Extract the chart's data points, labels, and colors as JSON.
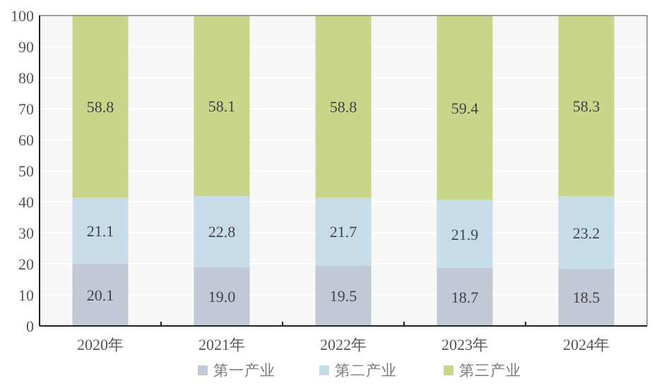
{
  "chart_data": {
    "type": "bar",
    "stacked": true,
    "categories": [
      "2020年",
      "2021年",
      "2022年",
      "2023年",
      "2024年"
    ],
    "series": [
      {
        "name": "第一产业",
        "color": "#c2c9d6",
        "values": [
          20.1,
          19.0,
          19.5,
          18.7,
          18.5
        ],
        "value_labels": [
          "20.1",
          "19.0",
          "19.5",
          "18.7",
          "18.5"
        ]
      },
      {
        "name": "第二产业",
        "color": "#c6dce8",
        "values": [
          21.1,
          22.8,
          21.7,
          21.9,
          23.2
        ],
        "value_labels": [
          "21.1",
          "22.8",
          "21.7",
          "21.9",
          "23.2"
        ]
      },
      {
        "name": "第三产业",
        "color": "#c8d68c",
        "values": [
          58.8,
          58.1,
          58.8,
          59.4,
          58.3
        ],
        "value_labels": [
          "58.8",
          "58.1",
          "58.8",
          "59.4",
          "58.3"
        ]
      }
    ],
    "ylim": [
      0,
      100
    ],
    "yticks": [
      0,
      10,
      20,
      30,
      40,
      50,
      60,
      70,
      80,
      90,
      100
    ],
    "grid": "y",
    "legend": "bottom"
  }
}
